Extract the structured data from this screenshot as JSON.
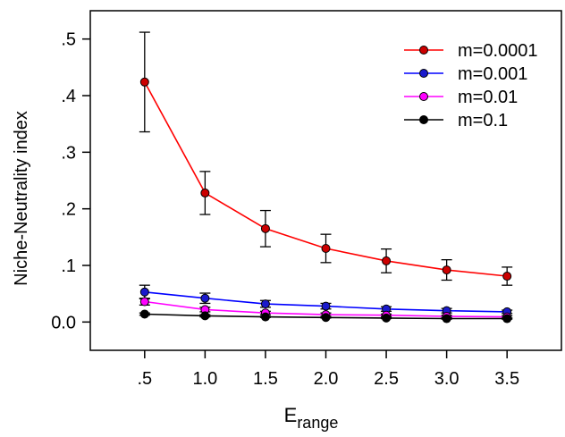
{
  "chart_data": {
    "type": "line",
    "title": "",
    "xlabel": "E",
    "xlabel_subscript": "range",
    "ylabel": "Niche-Neutrality index",
    "x": [
      0.5,
      1.0,
      1.5,
      2.0,
      2.5,
      3.0,
      3.5
    ],
    "x_tick_labels": [
      ".5",
      "1.0",
      "1.5",
      "2.0",
      "2.5",
      "3.0",
      "3.5"
    ],
    "y_ticks": [
      0.0,
      0.1,
      0.2,
      0.3,
      0.4,
      0.5
    ],
    "y_tick_labels": [
      "0.0",
      ".1",
      ".2",
      ".3",
      ".4",
      ".5"
    ],
    "xlim": [
      0.05,
      3.95
    ],
    "ylim": [
      -0.05,
      0.55
    ],
    "grid": false,
    "legend_position": "top-right",
    "series": [
      {
        "name": "m=0.0001",
        "color": "#ff0000",
        "marker_color": "#cc0000",
        "values": [
          0.424,
          0.228,
          0.165,
          0.13,
          0.108,
          0.092,
          0.081
        ],
        "errors": [
          0.088,
          0.038,
          0.032,
          0.025,
          0.021,
          0.018,
          0.016
        ]
      },
      {
        "name": "m=0.001",
        "color": "#0000ff",
        "marker_color": "#1a1acc",
        "values": [
          0.053,
          0.042,
          0.032,
          0.028,
          0.023,
          0.02,
          0.018
        ],
        "errors": [
          0.012,
          0.009,
          0.006,
          0.005,
          0.004,
          0.004,
          0.003
        ]
      },
      {
        "name": "m=0.01",
        "color": "#ff00ff",
        "marker_color": "#ff00ff",
        "values": [
          0.036,
          0.022,
          0.016,
          0.013,
          0.012,
          0.01,
          0.009
        ],
        "errors": [
          0.006,
          0.004,
          0.003,
          0.003,
          0.002,
          0.002,
          0.002
        ]
      },
      {
        "name": "m=0.1",
        "color": "#000000",
        "marker_color": "#000000",
        "values": [
          0.014,
          0.011,
          0.009,
          0.008,
          0.007,
          0.006,
          0.006
        ],
        "errors": [
          0.002,
          0.002,
          0.001,
          0.001,
          0.001,
          0.001,
          0.001
        ]
      }
    ]
  }
}
